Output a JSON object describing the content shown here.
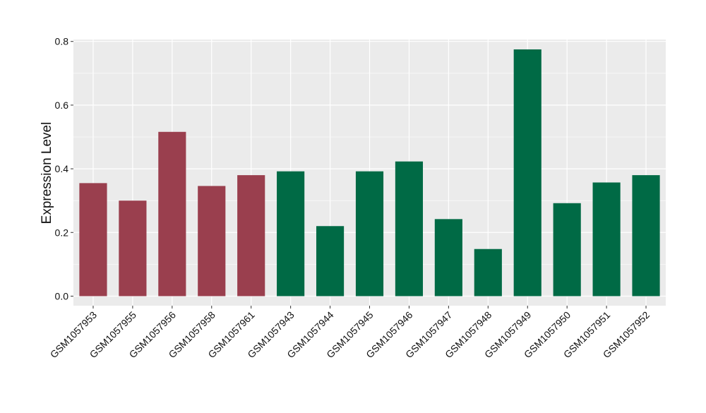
{
  "chart_data": {
    "type": "bar",
    "title": "",
    "xlabel": "",
    "ylabel": "Expression Level",
    "ylim": [
      -0.03,
      0.806
    ],
    "yticks": [
      0.0,
      0.2,
      0.4,
      0.6,
      0.8
    ],
    "ytick_labels": [
      "0.0",
      "0.2",
      "0.4",
      "0.6",
      "0.8"
    ],
    "grid": true,
    "legend": "none",
    "categories": [
      "GSM1057953",
      "GSM1057955",
      "GSM1057956",
      "GSM1057958",
      "GSM1057961",
      "GSM1057943",
      "GSM1057944",
      "GSM1057945",
      "GSM1057946",
      "GSM1057947",
      "GSM1057948",
      "GSM1057949",
      "GSM1057950",
      "GSM1057951",
      "GSM1057952"
    ],
    "values": [
      0.355,
      0.3,
      0.516,
      0.346,
      0.38,
      0.392,
      0.22,
      0.392,
      0.423,
      0.242,
      0.148,
      0.775,
      0.292,
      0.357,
      0.38
    ],
    "group_index": [
      0,
      0,
      0,
      0,
      0,
      1,
      1,
      1,
      1,
      1,
      1,
      1,
      1,
      1,
      1
    ],
    "group_colors": [
      "#9a3f4e",
      "#006a45"
    ],
    "panel_background": "#ebebeb",
    "grid_color": "#ffffff"
  }
}
